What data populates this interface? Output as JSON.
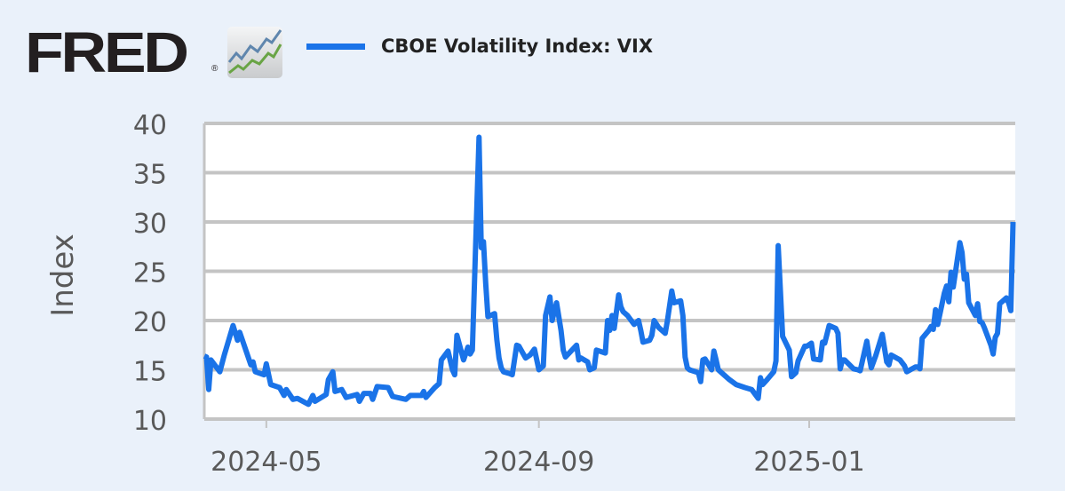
{
  "logo": {
    "text": "FRED",
    "mark": "®",
    "icon": "line-chart-icon"
  },
  "chart_data": {
    "type": "line",
    "title": "",
    "legend_position": "top",
    "xlabel": "",
    "ylabel": "Index",
    "ylim": [
      10,
      40
    ],
    "xlim": [
      "2024-04-03",
      "2025-04-04"
    ],
    "grid": true,
    "yticks": [
      10,
      15,
      20,
      25,
      30,
      35,
      40
    ],
    "xticks": [
      {
        "date": "2024-05-01",
        "label": "2024-05"
      },
      {
        "date": "2024-09-01",
        "label": "2024-09"
      },
      {
        "date": "2025-01-01",
        "label": "2025-01"
      }
    ],
    "series": [
      {
        "name": "CBOE Volatility Index: VIX",
        "color": "#1a73e8",
        "points": [
          [
            "2024-04-03",
            16.4
          ],
          [
            "2024-04-04",
            16.3
          ],
          [
            "2024-04-05",
            13.0
          ],
          [
            "2024-04-06",
            16.0
          ],
          [
            "2024-04-10",
            14.8
          ],
          [
            "2024-04-12",
            16.5
          ],
          [
            "2024-04-16",
            19.5
          ],
          [
            "2024-04-18",
            18.0
          ],
          [
            "2024-04-19",
            18.8
          ],
          [
            "2024-04-24",
            15.5
          ],
          [
            "2024-04-25",
            15.8
          ],
          [
            "2024-04-26",
            14.8
          ],
          [
            "2024-04-30",
            14.5
          ],
          [
            "2024-05-01",
            15.6
          ],
          [
            "2024-05-03",
            13.5
          ],
          [
            "2024-05-07",
            13.2
          ],
          [
            "2024-05-09",
            12.4
          ],
          [
            "2024-05-10",
            13.0
          ],
          [
            "2024-05-13",
            12.0
          ],
          [
            "2024-05-15",
            12.1
          ],
          [
            "2024-05-20",
            11.5
          ],
          [
            "2024-05-22",
            12.4
          ],
          [
            "2024-05-23",
            11.8
          ],
          [
            "2024-05-28",
            12.5
          ],
          [
            "2024-05-29",
            14.0
          ],
          [
            "2024-05-31",
            14.8
          ],
          [
            "2024-06-01",
            12.8
          ],
          [
            "2024-06-04",
            13.0
          ],
          [
            "2024-06-06",
            12.2
          ],
          [
            "2024-06-11",
            12.5
          ],
          [
            "2024-06-12",
            11.8
          ],
          [
            "2024-06-14",
            12.6
          ],
          [
            "2024-06-17",
            12.6
          ],
          [
            "2024-06-18",
            12.0
          ],
          [
            "2024-06-20",
            13.3
          ],
          [
            "2024-06-25",
            13.2
          ],
          [
            "2024-06-27",
            12.3
          ],
          [
            "2024-07-03",
            12.0
          ],
          [
            "2024-07-05",
            12.4
          ],
          [
            "2024-07-10",
            12.4
          ],
          [
            "2024-07-11",
            12.8
          ],
          [
            "2024-07-12",
            12.2
          ],
          [
            "2024-07-16",
            13.2
          ],
          [
            "2024-07-18",
            13.6
          ],
          [
            "2024-07-19",
            16.0
          ],
          [
            "2024-07-22",
            16.9
          ],
          [
            "2024-07-24",
            15.0
          ],
          [
            "2024-07-25",
            14.5
          ],
          [
            "2024-07-26",
            18.5
          ],
          [
            "2024-07-29",
            16.0
          ],
          [
            "2024-07-31",
            17.3
          ],
          [
            "2024-08-01",
            16.6
          ],
          [
            "2024-08-02",
            17.0
          ],
          [
            "2024-08-05",
            38.6
          ],
          [
            "2024-08-06",
            27.4
          ],
          [
            "2024-08-07",
            28.0
          ],
          [
            "2024-08-08",
            23.8
          ],
          [
            "2024-08-09",
            20.4
          ],
          [
            "2024-08-12",
            20.7
          ],
          [
            "2024-08-13",
            18.1
          ],
          [
            "2024-08-14",
            16.2
          ],
          [
            "2024-08-15",
            15.2
          ],
          [
            "2024-08-16",
            14.8
          ],
          [
            "2024-08-19",
            14.6
          ],
          [
            "2024-08-20",
            14.5
          ],
          [
            "2024-08-22",
            17.5
          ],
          [
            "2024-08-23",
            17.4
          ],
          [
            "2024-08-26",
            16.2
          ],
          [
            "2024-08-28",
            16.5
          ],
          [
            "2024-08-30",
            17.1
          ],
          [
            "2024-09-01",
            15.0
          ],
          [
            "2024-09-03",
            15.4
          ],
          [
            "2024-09-04",
            20.5
          ],
          [
            "2024-09-06",
            22.4
          ],
          [
            "2024-09-07",
            20.0
          ],
          [
            "2024-09-09",
            21.8
          ],
          [
            "2024-09-11",
            19.0
          ],
          [
            "2024-09-12",
            17.0
          ],
          [
            "2024-09-13",
            16.3
          ],
          [
            "2024-09-18",
            17.5
          ],
          [
            "2024-09-19",
            16.0
          ],
          [
            "2024-09-20",
            16.2
          ],
          [
            "2024-09-23",
            15.8
          ],
          [
            "2024-09-24",
            15.0
          ],
          [
            "2024-09-26",
            15.2
          ],
          [
            "2024-09-27",
            17.0
          ],
          [
            "2024-10-01",
            16.7
          ],
          [
            "2024-10-02",
            20.0
          ],
          [
            "2024-10-03",
            19.0
          ],
          [
            "2024-10-04",
            20.5
          ],
          [
            "2024-10-05",
            19.2
          ],
          [
            "2024-10-07",
            22.6
          ],
          [
            "2024-10-08",
            21.4
          ],
          [
            "2024-10-09",
            20.9
          ],
          [
            "2024-10-11",
            20.5
          ],
          [
            "2024-10-14",
            19.6
          ],
          [
            "2024-10-16",
            20.0
          ],
          [
            "2024-10-17",
            19.0
          ],
          [
            "2024-10-18",
            17.8
          ],
          [
            "2024-10-21",
            18.0
          ],
          [
            "2024-10-22",
            18.5
          ],
          [
            "2024-10-23",
            20.0
          ],
          [
            "2024-10-25",
            19.3
          ],
          [
            "2024-10-28",
            18.7
          ],
          [
            "2024-10-29",
            20.0
          ],
          [
            "2024-10-31",
            23.0
          ],
          [
            "2024-11-01",
            21.8
          ],
          [
            "2024-11-04",
            22.0
          ],
          [
            "2024-11-05",
            20.5
          ],
          [
            "2024-11-06",
            16.3
          ],
          [
            "2024-11-07",
            15.2
          ],
          [
            "2024-11-08",
            15.0
          ],
          [
            "2024-11-12",
            14.7
          ],
          [
            "2024-11-13",
            13.8
          ],
          [
            "2024-11-14",
            16.0
          ],
          [
            "2024-11-15",
            16.1
          ],
          [
            "2024-11-18",
            15.0
          ],
          [
            "2024-11-19",
            16.9
          ],
          [
            "2024-11-20",
            16.0
          ],
          [
            "2024-11-21",
            15.0
          ],
          [
            "2024-11-22",
            14.8
          ],
          [
            "2024-11-26",
            14.0
          ],
          [
            "2024-11-29",
            13.5
          ],
          [
            "2024-12-03",
            13.2
          ],
          [
            "2024-12-06",
            13.0
          ],
          [
            "2024-12-09",
            12.1
          ],
          [
            "2024-12-10",
            14.2
          ],
          [
            "2024-12-11",
            13.5
          ],
          [
            "2024-12-13",
            14.0
          ],
          [
            "2024-12-16",
            14.8
          ],
          [
            "2024-12-17",
            15.9
          ],
          [
            "2024-12-18",
            27.6
          ],
          [
            "2024-12-20",
            18.4
          ],
          [
            "2024-12-23",
            17.0
          ],
          [
            "2024-12-24",
            14.3
          ],
          [
            "2024-12-26",
            14.7
          ],
          [
            "2024-12-27",
            15.9
          ],
          [
            "2024-12-30",
            17.4
          ],
          [
            "2024-12-31",
            17.4
          ],
          [
            "2025-01-02",
            17.7
          ],
          [
            "2025-01-03",
            16.1
          ],
          [
            "2025-01-06",
            16.0
          ],
          [
            "2025-01-07",
            17.8
          ],
          [
            "2025-01-08",
            17.7
          ],
          [
            "2025-01-10",
            19.5
          ],
          [
            "2025-01-13",
            19.2
          ],
          [
            "2025-01-14",
            18.7
          ],
          [
            "2025-01-15",
            15.1
          ],
          [
            "2025-01-16",
            16.0
          ],
          [
            "2025-01-17",
            16.0
          ],
          [
            "2025-01-21",
            15.1
          ],
          [
            "2025-01-23",
            15.0
          ],
          [
            "2025-01-24",
            14.9
          ],
          [
            "2025-01-27",
            17.9
          ],
          [
            "2025-01-28",
            16.4
          ],
          [
            "2025-01-29",
            15.2
          ],
          [
            "2025-01-31",
            16.4
          ],
          [
            "2025-02-03",
            18.6
          ],
          [
            "2025-02-04",
            17.2
          ],
          [
            "2025-02-05",
            15.8
          ],
          [
            "2025-02-06",
            15.5
          ],
          [
            "2025-02-07",
            16.5
          ],
          [
            "2025-02-11",
            16.0
          ],
          [
            "2025-02-13",
            15.4
          ],
          [
            "2025-02-14",
            14.8
          ],
          [
            "2025-02-18",
            15.3
          ],
          [
            "2025-02-19",
            15.3
          ],
          [
            "2025-02-20",
            15.1
          ],
          [
            "2025-02-21",
            18.2
          ],
          [
            "2025-02-24",
            19.0
          ],
          [
            "2025-02-25",
            19.4
          ],
          [
            "2025-02-26",
            19.1
          ],
          [
            "2025-02-27",
            21.1
          ],
          [
            "2025-02-28",
            19.6
          ],
          [
            "2025-03-03",
            22.8
          ],
          [
            "2025-03-04",
            23.5
          ],
          [
            "2025-03-05",
            21.9
          ],
          [
            "2025-03-06",
            24.9
          ],
          [
            "2025-03-07",
            23.4
          ],
          [
            "2025-03-10",
            27.9
          ],
          [
            "2025-03-11",
            26.9
          ],
          [
            "2025-03-12",
            24.2
          ],
          [
            "2025-03-13",
            24.7
          ],
          [
            "2025-03-14",
            21.8
          ],
          [
            "2025-03-17",
            20.5
          ],
          [
            "2025-03-18",
            21.7
          ],
          [
            "2025-03-19",
            19.9
          ],
          [
            "2025-03-20",
            19.8
          ],
          [
            "2025-03-21",
            19.3
          ],
          [
            "2025-03-24",
            17.5
          ],
          [
            "2025-03-25",
            16.6
          ],
          [
            "2025-03-26",
            18.3
          ],
          [
            "2025-03-27",
            18.7
          ],
          [
            "2025-03-28",
            21.7
          ],
          [
            "2025-03-31",
            22.3
          ],
          [
            "2025-04-01",
            21.8
          ],
          [
            "2025-04-02",
            21.0
          ],
          [
            "2025-04-03",
            30.0
          ]
        ]
      }
    ]
  }
}
